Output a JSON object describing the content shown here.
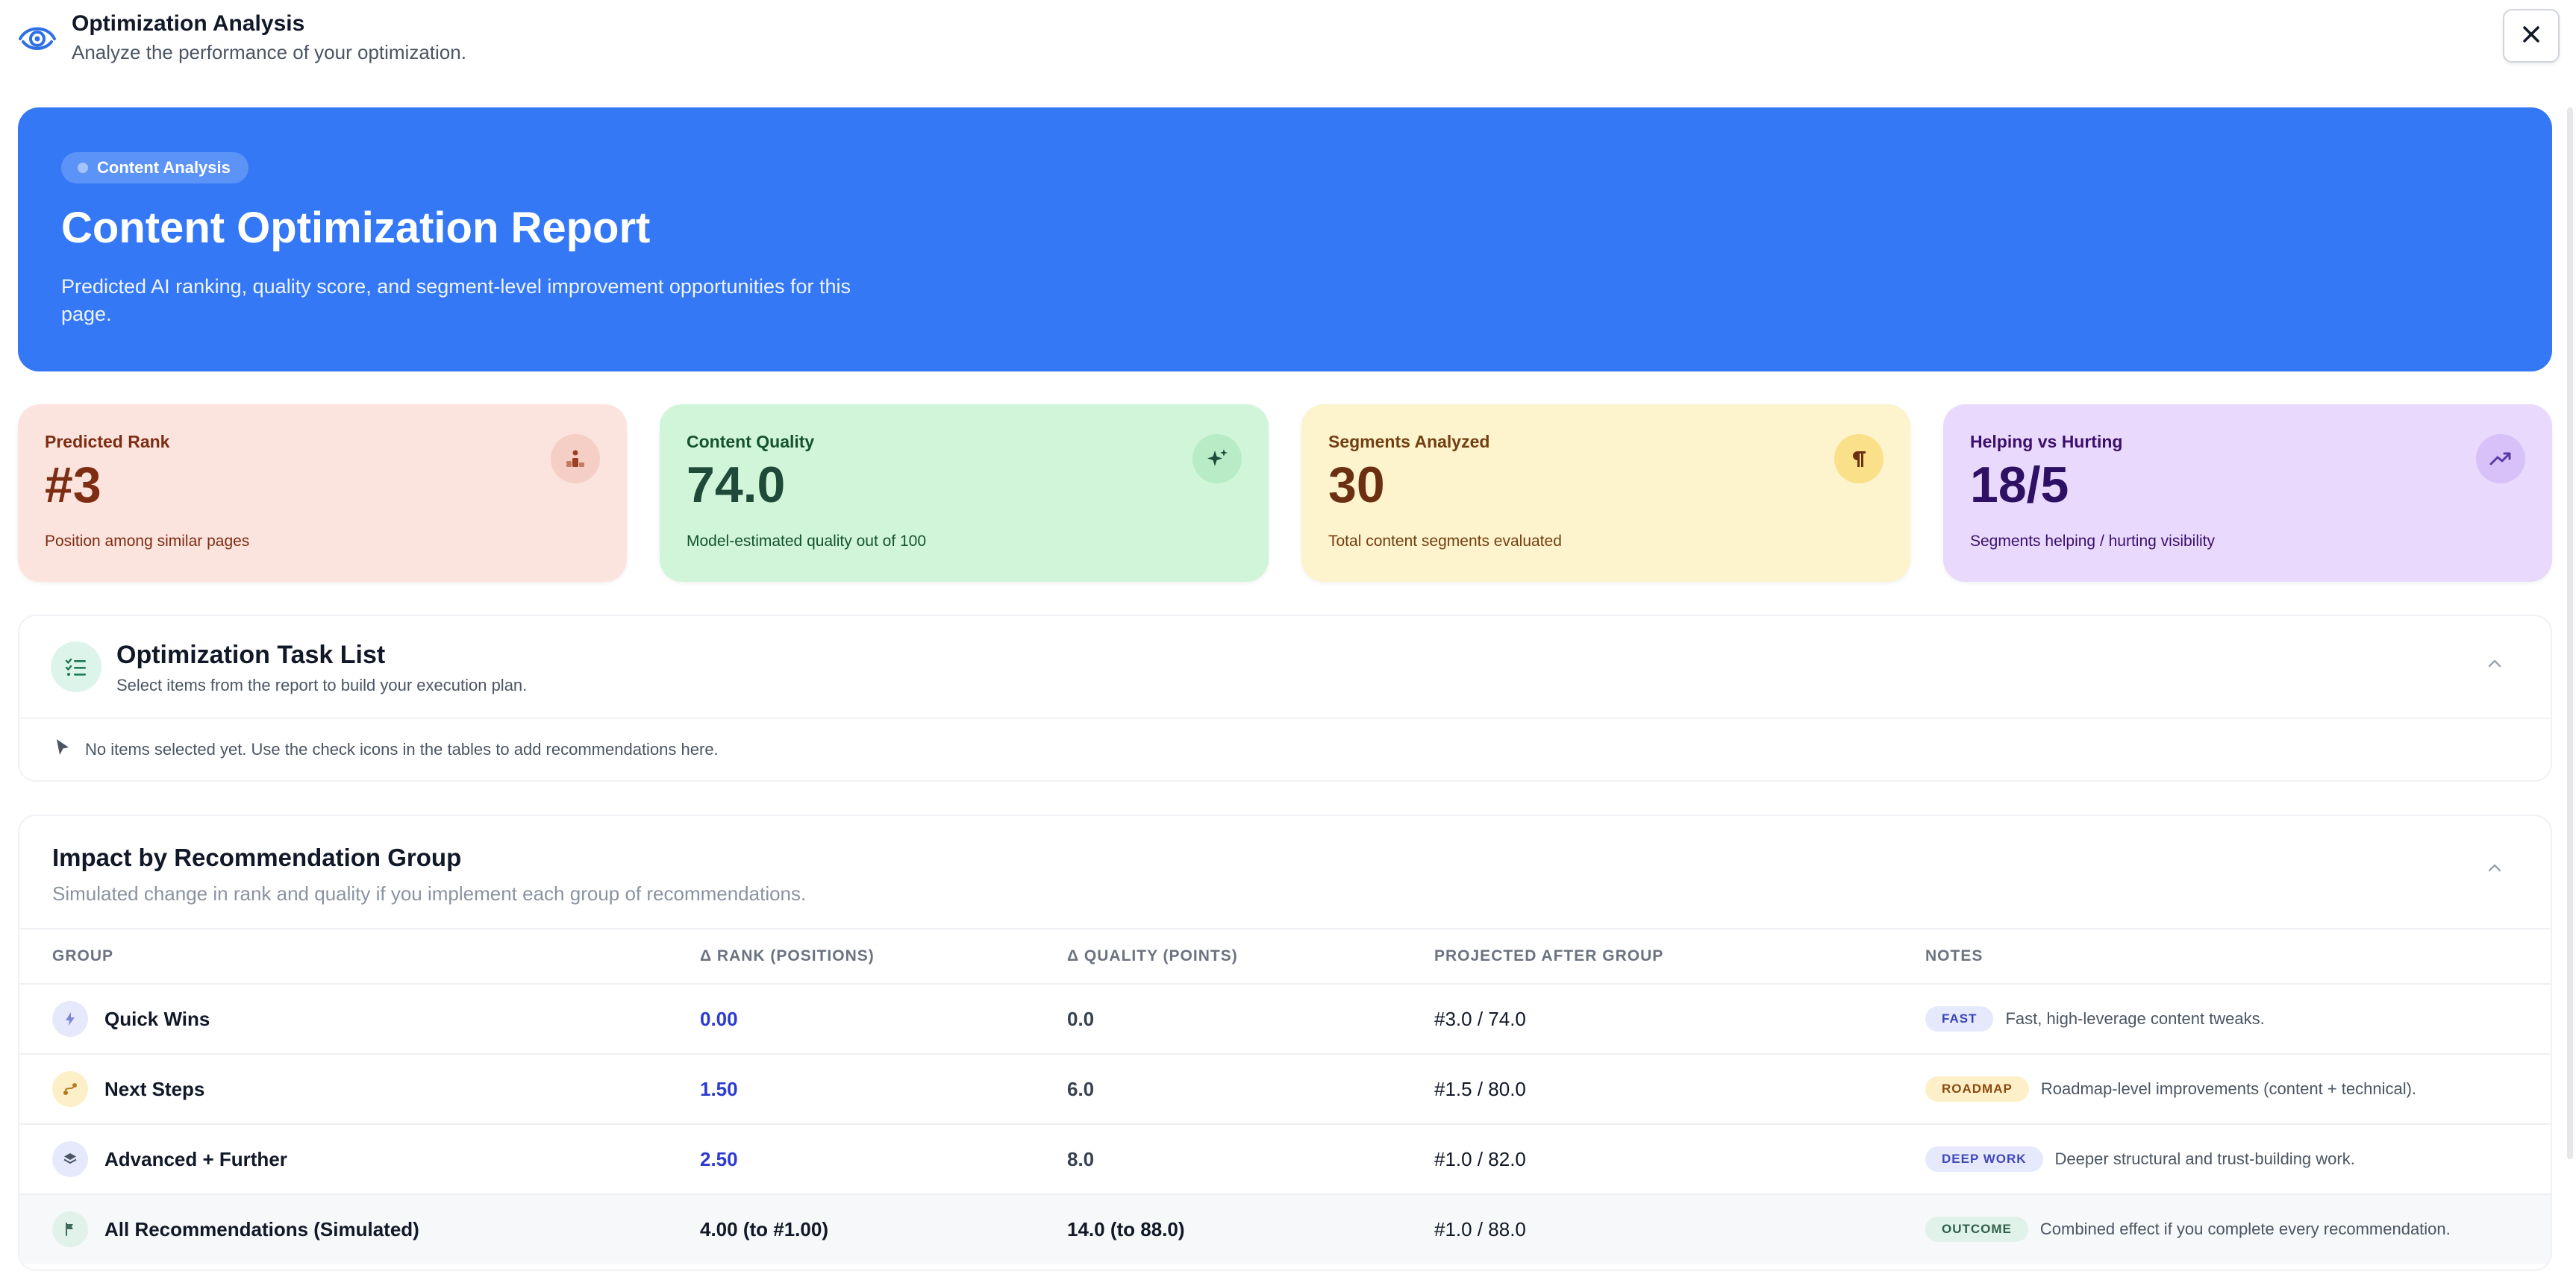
{
  "modal": {
    "title": "Optimization Analysis",
    "subtitle": "Analyze the performance of your optimization."
  },
  "hero": {
    "chip": "Content Analysis",
    "title": "Content Optimization Report",
    "description": "Predicted AI ranking, quality score, and segment-level improvement opportunities for this page.",
    "color": "#3478f6"
  },
  "stats": [
    {
      "label": "Predicted Rank",
      "value": "#3",
      "note": "Position among similar pages",
      "icon": "podium-icon"
    },
    {
      "label": "Content Quality",
      "value": "74.0",
      "note": "Model-estimated quality out of 100",
      "icon": "sparkles-icon"
    },
    {
      "label": "Segments Analyzed",
      "value": "30",
      "note": "Total content segments evaluated",
      "icon": "pilcrow-icon"
    },
    {
      "label": "Helping vs Hurting",
      "value": "18/5",
      "note": "Segments helping / hurting visibility",
      "icon": "trending-up-icon"
    }
  ],
  "task_list": {
    "title": "Optimization Task List",
    "subtitle": "Select items from the report to build your execution plan.",
    "empty_message": "No items selected yet. Use the check icons in the tables to add recommendations here."
  },
  "impact": {
    "title": "Impact by Recommendation Group",
    "subtitle": "Simulated change in rank and quality if you implement each group of recommendations.",
    "columns": [
      "GROUP",
      "Δ RANK (POSITIONS)",
      "Δ QUALITY (POINTS)",
      "PROJECTED AFTER GROUP",
      "NOTES"
    ],
    "rows": [
      {
        "group": "Quick Wins",
        "rank": "0.00",
        "quality": "0.0",
        "projected": "#3.0 / 74.0",
        "badge": "FAST",
        "note": "Fast, high-leverage content tweaks.",
        "icon": "lightning-icon"
      },
      {
        "group": "Next Steps",
        "rank": "1.50",
        "quality": "6.0",
        "projected": "#1.5 / 80.0",
        "badge": "ROADMAP",
        "note": "Roadmap-level improvements (content + technical).",
        "icon": "route-icon"
      },
      {
        "group": "Advanced + Further",
        "rank": "2.50",
        "quality": "8.0",
        "projected": "#1.0 / 82.0",
        "badge": "DEEP WORK",
        "note": "Deeper structural and trust-building work.",
        "icon": "layers-icon"
      },
      {
        "group": "All Recommendations (Simulated)",
        "rank": "4.00 (to #1.00)",
        "quality": "14.0 (to 88.0)",
        "projected": "#1.0 / 88.0",
        "badge": "OUTCOME",
        "note": "Combined effect if you complete every recommendation.",
        "icon": "flag-icon"
      }
    ]
  }
}
